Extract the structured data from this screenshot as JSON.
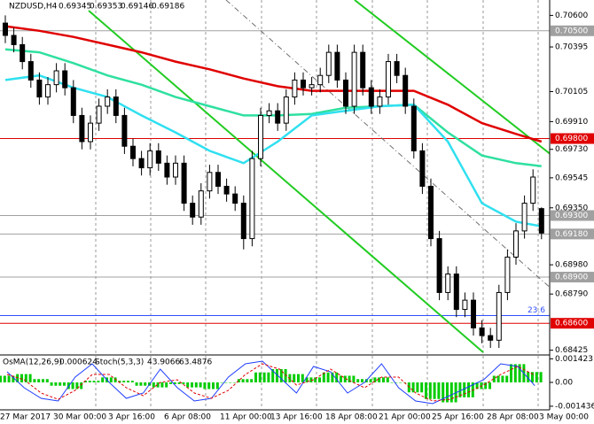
{
  "chart_data": {
    "type": "candlestick",
    "title": "NZDUSD,H4",
    "open": [
      0.7055,
      0.7047,
      0.7041,
      0.703,
      0.7018,
      0.7007,
      0.7015,
      0.7024,
      0.7013,
      0.6995,
      0.6978,
      0.699,
      0.7001,
      0.7007,
      0.6995,
      0.6975,
      0.6967,
      0.6961,
      0.6972,
      0.6964,
      0.6955,
      0.6964,
      0.6938,
      0.6929,
      0.6946,
      0.6958,
      0.6949,
      0.6944,
      0.6938,
      0.6915,
      0.6967,
      0.6995,
      0.6998,
      0.699,
      0.7007,
      0.7018,
      0.7013,
      0.7015,
      0.7021,
      0.7036,
      0.7018,
      0.7001,
      0.7036,
      0.7013,
      0.7001,
      0.7007,
      0.703,
      0.7021,
      0.7001,
      0.6972,
      0.6949,
      0.6915,
      0.688,
      0.6892,
      0.6869,
      0.6875,
      0.6857,
      0.6852,
      0.6849,
      0.688,
      0.6903,
      0.692,
      0.6938,
      0.69345
    ],
    "high": [
      0.706,
      0.7052,
      0.7046,
      0.7035,
      0.7023,
      0.702,
      0.7029,
      0.7029,
      0.7018,
      0.7,
      0.6995,
      0.7006,
      0.7012,
      0.7012,
      0.7,
      0.698,
      0.6972,
      0.6977,
      0.6977,
      0.6969,
      0.6969,
      0.6969,
      0.6943,
      0.6951,
      0.6963,
      0.6963,
      0.6954,
      0.6949,
      0.6943,
      0.6972,
      0.7,
      0.7003,
      0.7003,
      0.7012,
      0.7023,
      0.7023,
      0.702,
      0.7026,
      0.7041,
      0.7041,
      0.7023,
      0.7041,
      0.7041,
      0.7018,
      0.7012,
      0.7035,
      0.7035,
      0.7026,
      0.7006,
      0.6977,
      0.6954,
      0.692,
      0.6897,
      0.6897,
      0.688,
      0.688,
      0.6862,
      0.6857,
      0.6885,
      0.6908,
      0.6925,
      0.6943,
      0.696,
      0.69353
    ],
    "low": [
      0.7042,
      0.7036,
      0.7025,
      0.7013,
      0.7002,
      0.7002,
      0.701,
      0.7008,
      0.699,
      0.6973,
      0.6973,
      0.6985,
      0.6996,
      0.699,
      0.697,
      0.6962,
      0.6956,
      0.6956,
      0.6959,
      0.695,
      0.695,
      0.6933,
      0.6924,
      0.6924,
      0.6941,
      0.6944,
      0.6939,
      0.6933,
      0.6908,
      0.691,
      0.6962,
      0.699,
      0.6985,
      0.6985,
      0.7002,
      0.7008,
      0.7008,
      0.701,
      0.7016,
      0.7013,
      0.6996,
      0.6996,
      0.7008,
      0.6996,
      0.6996,
      0.7002,
      0.7016,
      0.6996,
      0.6967,
      0.6944,
      0.691,
      0.6875,
      0.6875,
      0.6864,
      0.6864,
      0.6852,
      0.6847,
      0.6844,
      0.6844,
      0.6875,
      0.6898,
      0.6915,
      0.6933,
      0.69146
    ],
    "close": [
      0.7047,
      0.7041,
      0.703,
      0.7018,
      0.7007,
      0.7015,
      0.7024,
      0.7013,
      0.6995,
      0.6978,
      0.699,
      0.7001,
      0.7007,
      0.6995,
      0.6975,
      0.6967,
      0.6961,
      0.6972,
      0.6964,
      0.6955,
      0.6964,
      0.6938,
      0.6929,
      0.6946,
      0.6958,
      0.6949,
      0.6944,
      0.6938,
      0.6915,
      0.6967,
      0.6995,
      0.6998,
      0.699,
      0.7007,
      0.7018,
      0.7013,
      0.7015,
      0.7021,
      0.7036,
      0.7018,
      0.7001,
      0.7036,
      0.7013,
      0.7001,
      0.7007,
      0.703,
      0.7021,
      0.7001,
      0.6972,
      0.6949,
      0.6915,
      0.688,
      0.6892,
      0.6869,
      0.6875,
      0.6857,
      0.6852,
      0.6849,
      0.688,
      0.6903,
      0.692,
      0.6938,
      0.6955,
      0.69186
    ],
    "series": [
      {
        "color": "#e00000",
        "x": [
          0,
          4,
          8,
          12,
          16,
          20,
          24,
          28,
          32,
          36,
          40,
          44,
          48,
          52,
          56,
          60,
          63
        ],
        "values": [
          0.7053,
          0.705,
          0.7046,
          0.7041,
          0.7036,
          0.703,
          0.7025,
          0.7019,
          0.7014,
          0.7011,
          0.7011,
          0.7011,
          0.7011,
          0.7002,
          0.699,
          0.6983,
          0.6978
        ]
      },
      {
        "color": "#2fe0a0",
        "x": [
          0,
          4,
          8,
          12,
          16,
          20,
          24,
          28,
          32,
          36,
          40,
          44,
          48,
          52,
          56,
          60,
          63
        ],
        "values": [
          0.7038,
          0.7036,
          0.7029,
          0.7021,
          0.7015,
          0.7007,
          0.7001,
          0.6995,
          0.6995,
          0.6996,
          0.7,
          0.7001,
          0.7002,
          0.6984,
          0.6969,
          0.6964,
          0.6962
        ]
      },
      {
        "color": "#30e0f0",
        "x": [
          0,
          4,
          8,
          12,
          16,
          20,
          24,
          28,
          32,
          36,
          40,
          44,
          48,
          52,
          56,
          60,
          63
        ],
        "values": [
          0.7018,
          0.7021,
          0.7013,
          0.7007,
          0.6995,
          0.6984,
          0.6972,
          0.6964,
          0.6978,
          0.6995,
          0.6998,
          0.7001,
          0.7002,
          0.6978,
          0.6938,
          0.6926,
          0.6923
        ]
      }
    ],
    "levels": [
      {
        "value": 0.705,
        "label": "0.70500",
        "color": "#a0a0a0"
      },
      {
        "value": 0.698,
        "label": "0.69800",
        "color": "#e00000"
      },
      {
        "value": 0.693,
        "label": "0.69300",
        "color": "#a0a0a0"
      },
      {
        "value": 0.6918,
        "label": "0.69180",
        "color": "#a0a0a0"
      },
      {
        "value": 0.689,
        "label": "0.68900",
        "color": "#a0a0a0"
      },
      {
        "value": 0.6865,
        "label": "23.6",
        "color": "#3050ff"
      },
      {
        "value": 0.686,
        "label": "0.68600",
        "color": "#e00000"
      }
    ],
    "ylim": [
      0.684,
      0.707
    ],
    "yticks": [
      {
        "value": 0.706,
        "label": "0.70600"
      },
      {
        "value": 0.70395,
        "label": "0.70395"
      },
      {
        "value": 0.70105,
        "label": "0.70105"
      },
      {
        "value": 0.6991,
        "label": "0.69910"
      },
      {
        "value": 0.6973,
        "label": "0.69730"
      },
      {
        "value": 0.69545,
        "label": "0.69545"
      },
      {
        "value": 0.6935,
        "label": "0.69350"
      },
      {
        "value": 0.6898,
        "label": "0.68980"
      },
      {
        "value": 0.6879,
        "label": "0.68790"
      },
      {
        "value": 0.68425,
        "label": "0.68425"
      }
    ],
    "xtick_labels": [
      "27 Mar 2017",
      "30 Mar 00:00",
      "3 Apr 16:00",
      "6 Apr 08:00",
      "11 Apr 00:00",
      "13 Apr 16:00",
      "18 Apr 08:00",
      "21 Apr 00:00",
      "25 Apr 16:00",
      "28 Apr 08:00",
      "3 May 00:00"
    ],
    "oscillator": {
      "osma_name": "OsMA(12,26,9)",
      "stoch_name": "Stoch(5,3,3)",
      "osma": [
        0.0004,
        0.0005,
        0.0002,
        -0.0002,
        -0.0004,
        0.0001,
        0.0003,
        0.0001,
        -0.0002,
        -0.0003,
        -0.0001,
        -0.0003,
        -0.0004,
        0.0,
        0.0002,
        0.0006,
        0.0008,
        0.0005,
        0.0003,
        0.0006,
        0.0004,
        0.0002,
        0.0003,
        0.0,
        -0.0006,
        -0.001,
        -0.0012,
        -0.0009,
        -0.0004,
        0.0004,
        0.0011,
        0.000624
      ],
      "osma_color": "#00cc00",
      "stoch_main": [
        70,
        40,
        20,
        15,
        60,
        85,
        50,
        20,
        30,
        75,
        40,
        15,
        20,
        60,
        85,
        90,
        60,
        30,
        80,
        70,
        30,
        50,
        85,
        40,
        15,
        10,
        25,
        40,
        55,
        85,
        80,
        43.9066
      ],
      "stoch_signal": [
        65,
        55,
        30,
        18,
        35,
        65,
        65,
        40,
        25,
        50,
        55,
        30,
        20,
        35,
        65,
        85,
        75,
        45,
        55,
        75,
        55,
        40,
        60,
        60,
        30,
        15,
        18,
        30,
        45,
        65,
        80,
        63.4876
      ],
      "main_color": "#1e3cff",
      "signal_color": "#e00000",
      "ylim": [
        -0.0016,
        0.0016
      ],
      "stoch_lim": [
        0,
        100
      ],
      "yticks": [
        {
          "value": 0.001423,
          "label": "0.001423"
        },
        {
          "value": 0,
          "label": "0.00"
        },
        {
          "value": -0.001436,
          "label": "-0.001436"
        }
      ]
    }
  }
}
